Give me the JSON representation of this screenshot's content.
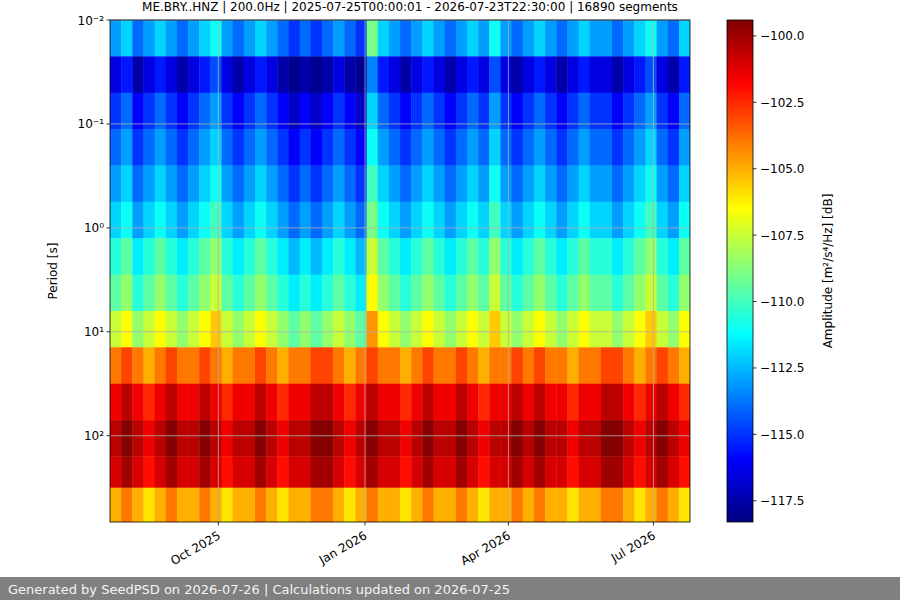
{
  "chart_data": {
    "type": "heatmap",
    "title": "ME.BRY..HNZ | 200.0Hz | 2025-07-25T00:00:01 - 2026-07-23T22:30:00 | 16890 segments",
    "footer": "Generated by SeedPSD on 2026-07-26 | Calculations updated on 2026-07-25",
    "y_label": "Period [s]",
    "log": "y",
    "grid": true,
    "xlim": [
      "2025-07-25T00:00:01",
      "2026-07-23T22:30:00"
    ],
    "xticks": [
      {
        "value": "2025-10-01",
        "label": "Oct 2025"
      },
      {
        "value": "2026-01-01",
        "label": "Jan 2026"
      },
      {
        "value": "2026-04-01",
        "label": "Apr 2026"
      },
      {
        "value": "2026-07-01",
        "label": "Jul 2026"
      }
    ],
    "ylim": [
      0.01,
      676
    ],
    "yticks": [
      {
        "value": 0.01,
        "label": "10⁻²"
      },
      {
        "value": 0.1,
        "label": "10⁻¹"
      },
      {
        "value": 1,
        "label": "10⁰"
      },
      {
        "value": 10,
        "label": "10¹"
      },
      {
        "value": 100,
        "label": "10²"
      }
    ],
    "x": [
      "2025-07-25",
      "2025-08-01",
      "2025-08-08",
      "2025-08-15",
      "2025-08-22",
      "2025-08-29",
      "2025-09-05",
      "2025-09-12",
      "2025-09-19",
      "2025-09-26",
      "2025-10-03",
      "2025-10-10",
      "2025-10-17",
      "2025-10-24",
      "2025-10-31",
      "2025-11-07",
      "2025-11-14",
      "2025-11-21",
      "2025-11-28",
      "2025-12-05",
      "2025-12-12",
      "2025-12-19",
      "2025-12-26",
      "2026-01-02",
      "2026-01-09",
      "2026-01-16",
      "2026-01-23",
      "2026-01-30",
      "2026-02-06",
      "2026-02-13",
      "2026-02-20",
      "2026-02-27",
      "2026-03-06",
      "2026-03-13",
      "2026-03-20",
      "2026-03-27",
      "2026-04-03",
      "2026-04-10",
      "2026-04-17",
      "2026-04-24",
      "2026-05-01",
      "2026-05-08",
      "2026-05-15",
      "2026-05-22",
      "2026-05-29",
      "2026-06-05",
      "2026-06-12",
      "2026-06-19",
      "2026-06-26",
      "2026-07-03",
      "2026-07-10",
      "2026-07-17"
    ],
    "y_edges": [
      0.01,
      0.0224,
      0.0501,
      0.112,
      0.251,
      0.562,
      1.26,
      2.82,
      6.31,
      14.1,
      31.6,
      70.8,
      158,
      316,
      676
    ],
    "z": [
      [
        -113,
        -112,
        -114,
        -113,
        -112,
        -113,
        -114,
        -113,
        -112,
        -111,
        -113,
        -114,
        -113,
        -112,
        -113,
        -114,
        -115,
        -114,
        -115,
        -114,
        -113,
        -114,
        -115,
        -109,
        -112,
        -113,
        -114,
        -113,
        -112,
        -113,
        -114,
        -113,
        -112,
        -113,
        -111,
        -113,
        -114,
        -113,
        -112,
        -113,
        -114,
        -113,
        -112,
        -113,
        -113,
        -114,
        -113,
        -112,
        -111,
        -113,
        -114,
        -112
      ],
      [
        -116.5,
        -115.5,
        -117.5,
        -116.5,
        -115.5,
        -116.5,
        -117.5,
        -116.5,
        -115.5,
        -114.5,
        -116.5,
        -117.5,
        -116.5,
        -115.5,
        -116.5,
        -117.5,
        -118,
        -117.5,
        -118,
        -117.5,
        -116.5,
        -117.5,
        -118,
        -113.5,
        -115.5,
        -116.5,
        -117.5,
        -116.5,
        -115.5,
        -116.5,
        -117.5,
        -116.5,
        -115.5,
        -116.5,
        -114.5,
        -116.5,
        -117.5,
        -116.5,
        -115.5,
        -116.5,
        -117.5,
        -116.5,
        -115.5,
        -116.5,
        -116.5,
        -117.5,
        -116.5,
        -115.5,
        -114.5,
        -116.5,
        -117.5,
        -115.5
      ],
      [
        -115,
        -114,
        -116,
        -115,
        -114,
        -115,
        -116,
        -115,
        -114,
        -113,
        -115,
        -116,
        -115,
        -114,
        -115,
        -116,
        -117,
        -116,
        -117,
        -116,
        -115,
        -116,
        -117,
        -112,
        -114,
        -115,
        -116,
        -115,
        -114,
        -115,
        -116,
        -115,
        -114,
        -115,
        -113,
        -115,
        -116,
        -115,
        -114,
        -115,
        -116,
        -115,
        -114,
        -115,
        -115,
        -116,
        -115,
        -114,
        -113,
        -115,
        -116,
        -114
      ],
      [
        -114,
        -113,
        -115,
        -114,
        -113,
        -114,
        -115,
        -114,
        -113,
        -112,
        -114,
        -115,
        -114,
        -113,
        -114,
        -115,
        -116,
        -115,
        -116,
        -115,
        -114,
        -115,
        -116,
        -111,
        -113,
        -114,
        -115,
        -114,
        -113,
        -114,
        -115,
        -114,
        -113,
        -114,
        -112,
        -114,
        -115,
        -114,
        -113,
        -114,
        -115,
        -114,
        -113,
        -114,
        -114,
        -115,
        -114,
        -113,
        -112,
        -114,
        -115,
        -113
      ],
      [
        -113,
        -112,
        -114,
        -113,
        -112,
        -113,
        -114,
        -113,
        -112,
        -111,
        -113,
        -114,
        -113,
        -112,
        -113,
        -114,
        -115,
        -114,
        -115,
        -114,
        -113,
        -114,
        -115,
        -110,
        -112,
        -113,
        -114,
        -113,
        -112,
        -113,
        -114,
        -113,
        -112,
        -113,
        -111,
        -113,
        -114,
        -113,
        -112,
        -113,
        -114,
        -113,
        -112,
        -113,
        -113,
        -114,
        -113,
        -112,
        -111,
        -113,
        -114,
        -112
      ],
      [
        -112,
        -111,
        -113,
        -112,
        -111,
        -112,
        -113,
        -112,
        -111,
        -110,
        -112,
        -113,
        -112,
        -111,
        -112,
        -113,
        -114,
        -113,
        -114,
        -113,
        -112,
        -113,
        -114,
        -109,
        -111,
        -112,
        -113,
        -112,
        -111,
        -112,
        -113,
        -112,
        -111,
        -112,
        -110,
        -112,
        -113,
        -112,
        -111,
        -112,
        -113,
        -112,
        -111,
        -112,
        -112,
        -113,
        -112,
        -111,
        -110,
        -112,
        -113,
        -111
      ],
      [
        -110.5,
        -109.5,
        -111.5,
        -110.5,
        -109.5,
        -110.5,
        -111.5,
        -110.5,
        -109.5,
        -108.5,
        -110.5,
        -111.5,
        -110.5,
        -109.5,
        -110.5,
        -111.5,
        -112.5,
        -111.5,
        -112.5,
        -111.5,
        -110.5,
        -111.5,
        -112.5,
        -107.5,
        -109.5,
        -110.5,
        -111.5,
        -110.5,
        -109.5,
        -110.5,
        -111.5,
        -110.5,
        -109.5,
        -110.5,
        -108.5,
        -110.5,
        -111.5,
        -110.5,
        -109.5,
        -110.5,
        -111.5,
        -110.5,
        -109.5,
        -110.5,
        -110.5,
        -111.5,
        -110.5,
        -109.5,
        -108.5,
        -110.5,
        -111.5,
        -109.5
      ],
      [
        -109.5,
        -108.5,
        -110.5,
        -109.5,
        -108.5,
        -109.5,
        -110.5,
        -109.5,
        -108.5,
        -107.5,
        -109.5,
        -110.5,
        -109.5,
        -108.5,
        -109.5,
        -110.5,
        -111.5,
        -110.5,
        -111.5,
        -110.5,
        -109.5,
        -110.5,
        -111.5,
        -106.5,
        -108.5,
        -109.5,
        -110.5,
        -109.5,
        -108.5,
        -109.5,
        -110.5,
        -109.5,
        -108.5,
        -109.5,
        -107.5,
        -109.5,
        -110.5,
        -109.5,
        -108.5,
        -109.5,
        -110.5,
        -109.5,
        -108.5,
        -109.5,
        -109.5,
        -110.5,
        -109.5,
        -108.5,
        -107.5,
        -109.5,
        -110.5,
        -108.5
      ],
      [
        -107.5,
        -106.5,
        -108.5,
        -107.5,
        -106.5,
        -107.5,
        -108.5,
        -107.5,
        -106.5,
        -105.5,
        -107.5,
        -108.5,
        -107.5,
        -106.5,
        -107.5,
        -108.5,
        -109.5,
        -108.5,
        -109.5,
        -108.5,
        -107.5,
        -108.5,
        -109.5,
        -104.5,
        -106.5,
        -107.5,
        -108.5,
        -107.5,
        -106.5,
        -107.5,
        -108.5,
        -107.5,
        -106.5,
        -107.5,
        -105.5,
        -107.5,
        -108.5,
        -107.5,
        -106.5,
        -107.5,
        -108.5,
        -107.5,
        -106.5,
        -107.5,
        -107.5,
        -108.5,
        -107.5,
        -106.5,
        -105.5,
        -107.5,
        -108.5,
        -106.5
      ],
      [
        -104,
        -103,
        -104,
        -105,
        -104,
        -103,
        -104,
        -104,
        -103,
        -104,
        -105,
        -104,
        -104,
        -103,
        -104,
        -105,
        -104,
        -104,
        -103,
        -103,
        -104,
        -105,
        -104,
        -103,
        -104,
        -104,
        -105,
        -104,
        -103,
        -104,
        -104,
        -103,
        -104,
        -105,
        -104,
        -104,
        -103,
        -104,
        -103,
        -104,
        -104,
        -105,
        -104,
        -104,
        -103,
        -103,
        -104,
        -105,
        -104,
        -103,
        -104,
        -105
      ],
      [
        -101.5,
        -100.5,
        -101.5,
        -102.5,
        -101.5,
        -100.5,
        -101.5,
        -101.5,
        -100.5,
        -101.5,
        -102.5,
        -101.5,
        -101.5,
        -100.5,
        -101.5,
        -102.5,
        -101.5,
        -101.5,
        -100.5,
        -100.5,
        -101.5,
        -102.5,
        -101.5,
        -100.5,
        -101.5,
        -101.5,
        -102.5,
        -101.5,
        -100.5,
        -101.5,
        -101.5,
        -100.5,
        -101.5,
        -102.5,
        -101.5,
        -101.5,
        -100.5,
        -101.5,
        -100.5,
        -101.5,
        -101.5,
        -102.5,
        -101.5,
        -101.5,
        -100.5,
        -100.5,
        -101.5,
        -102.5,
        -101.5,
        -100.5,
        -101.5,
        -102.5
      ],
      [
        -100.5,
        -99.5,
        -100.5,
        -101.5,
        -100.5,
        -99.5,
        -100.5,
        -100.5,
        -99.5,
        -100.5,
        -101.5,
        -100.5,
        -100.5,
        -99.5,
        -100.5,
        -101.5,
        -100.5,
        -100.5,
        -99.5,
        -99.5,
        -100.5,
        -101.5,
        -100.5,
        -99.5,
        -100.5,
        -100.5,
        -101.5,
        -100.5,
        -99.5,
        -100.5,
        -100.5,
        -99.5,
        -100.5,
        -101.5,
        -100.5,
        -100.5,
        -99.5,
        -100.5,
        -99.5,
        -100.5,
        -100.5,
        -101.5,
        -100.5,
        -100.5,
        -99.5,
        -99.5,
        -100.5,
        -101.5,
        -100.5,
        -99.5,
        -100.5,
        -101.5
      ],
      [
        -101,
        -100,
        -101,
        -102,
        -101,
        -100,
        -101,
        -101,
        -100,
        -101,
        -102,
        -101,
        -101,
        -100,
        -101,
        -102,
        -101,
        -101,
        -100,
        -100,
        -101,
        -102,
        -101,
        -100,
        -101,
        -101,
        -102,
        -101,
        -100,
        -101,
        -101,
        -100,
        -101,
        -102,
        -101,
        -101,
        -100,
        -101,
        -100,
        -101,
        -101,
        -102,
        -101,
        -101,
        -100,
        -100,
        -101,
        -102,
        -101,
        -100,
        -101,
        -102
      ],
      [
        -105,
        -104,
        -105,
        -106,
        -105,
        -104,
        -105,
        -105,
        -104,
        -105,
        -106,
        -105,
        -105,
        -104,
        -105,
        -106,
        -105,
        -105,
        -104,
        -104,
        -105,
        -106,
        -105,
        -104,
        -105,
        -105,
        -106,
        -105,
        -104,
        -105,
        -105,
        -104,
        -105,
        -106,
        -105,
        -105,
        -104,
        -105,
        -104,
        -105,
        -105,
        -106,
        -105,
        -105,
        -104,
        -104,
        -105,
        -106,
        -105,
        -104,
        -105,
        -106
      ]
    ],
    "colorbar": {
      "label": "Amplitude [m²/s⁴/Hz] [dB]",
      "range": [
        -118.3,
        -99.4
      ],
      "ticks": [
        {
          "value": -117.5,
          "label": "−117.5"
        },
        {
          "value": -115,
          "label": "−115.0"
        },
        {
          "value": -112.5,
          "label": "−112.5"
        },
        {
          "value": -110,
          "label": "−110.0"
        },
        {
          "value": -107.5,
          "label": "−107.5"
        },
        {
          "value": -105,
          "label": "−105.0"
        },
        {
          "value": -102.5,
          "label": "−102.5"
        },
        {
          "value": -100,
          "label": "−100.0"
        }
      ]
    }
  }
}
